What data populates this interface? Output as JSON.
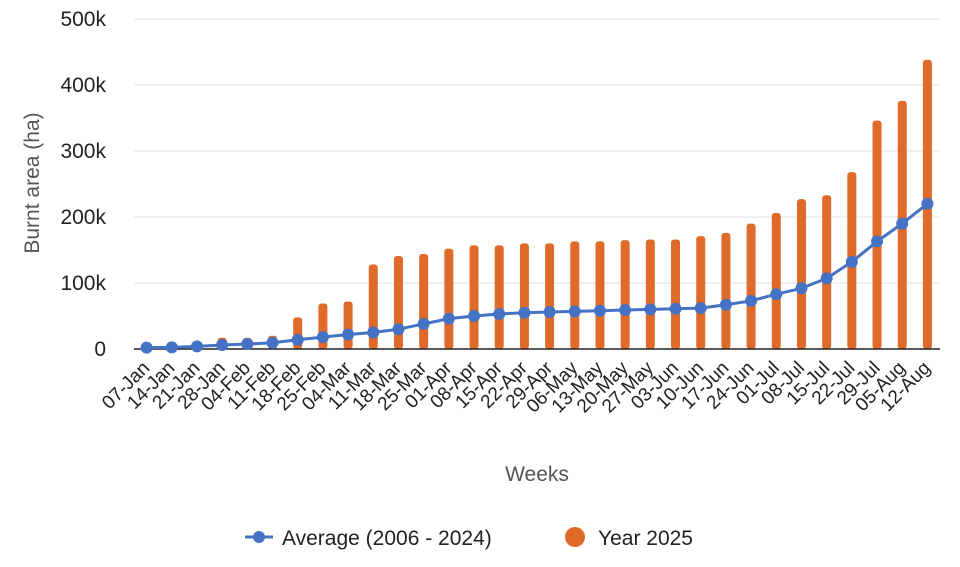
{
  "chart_data": {
    "type": "bar",
    "xlabel": "Weeks",
    "ylabel": "Burnt area (ha)",
    "ylim": [
      0,
      500000
    ],
    "yticks": [
      {
        "value": 0,
        "label": "0"
      },
      {
        "value": 100000,
        "label": "100k"
      },
      {
        "value": 200000,
        "label": "200k"
      },
      {
        "value": 300000,
        "label": "300k"
      },
      {
        "value": 400000,
        "label": "400k"
      },
      {
        "value": 500000,
        "label": "500k"
      }
    ],
    "grid": true,
    "legend_position": "bottom",
    "categories": [
      "07-Jan",
      "14-Jan",
      "21-Jan",
      "28-Jan",
      "04-Feb",
      "11-Feb",
      "18-Feb",
      "25-Feb",
      "04-Mar",
      "11-Mar",
      "18-Mar",
      "25-Mar",
      "01-Apr",
      "08-Apr",
      "15-Apr",
      "22-Apr",
      "29-Apr",
      "06-May",
      "13-May",
      "20-May",
      "27-May",
      "03-Jun",
      "10-Jun",
      "17-Jun",
      "24-Jun",
      "01-Jul",
      "08-Jul",
      "15-Jul",
      "22-Jul",
      "29-Jul",
      "05-Aug",
      "12-Aug"
    ],
    "series": [
      {
        "name": "Average (2006 - 2024)",
        "kind": "line",
        "color": "#4472c4",
        "values": [
          2000,
          2500,
          4000,
          6000,
          7500,
          9500,
          14000,
          18000,
          22000,
          25000,
          30000,
          38000,
          46000,
          50000,
          53000,
          55000,
          56000,
          57000,
          58000,
          59000,
          60000,
          61000,
          62000,
          67000,
          73000,
          83000,
          92000,
          107000,
          132000,
          163000,
          190000,
          220000
        ]
      },
      {
        "name": "Year 2025",
        "kind": "bar",
        "color": "#e06a2a",
        "values": [
          3000,
          5000,
          6000,
          17000,
          17000,
          20000,
          48000,
          69000,
          72000,
          128000,
          141000,
          144000,
          152000,
          157000,
          157000,
          160000,
          160000,
          163000,
          163000,
          165000,
          166000,
          166000,
          171000,
          176000,
          190000,
          206000,
          227000,
          233000,
          268000,
          346000,
          376000,
          438000
        ]
      }
    ]
  }
}
